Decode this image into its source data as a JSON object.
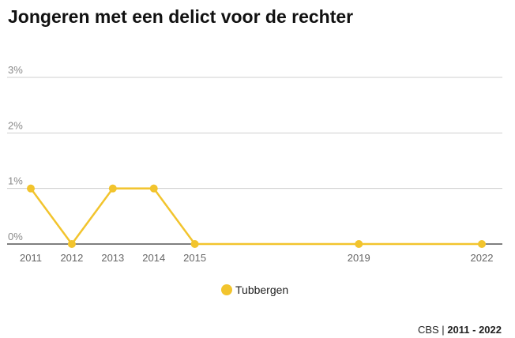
{
  "title": "Jongeren met een delict voor de rechter",
  "chart_data": {
    "type": "line",
    "title": "Jongeren met een delict voor de rechter",
    "x": [
      2011,
      2012,
      2013,
      2014,
      2015,
      2019,
      2022
    ],
    "series": [
      {
        "name": "Tubbergen",
        "values": [
          1,
          0,
          1,
          1,
          0,
          0,
          0
        ],
        "color": "#f2c42d"
      }
    ],
    "yticks": [
      0,
      1,
      2,
      3
    ],
    "ytick_labels": [
      "0%",
      "1%",
      "2%",
      "3%"
    ],
    "ylim": [
      0,
      3
    ],
    "xlabel": "",
    "ylabel": "",
    "grid": true,
    "legend": "bottom-center"
  },
  "legend": {
    "label": "Tubbergen"
  },
  "source": {
    "name": "CBS |",
    "period": "2011 - 2022"
  }
}
